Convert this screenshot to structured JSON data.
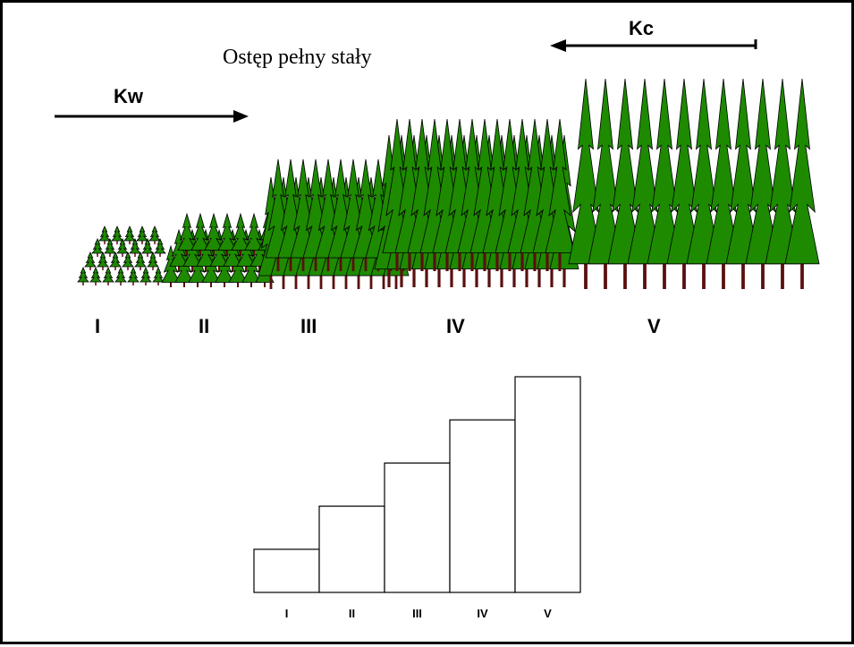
{
  "diagram": {
    "title": "Ostęp pełny stały",
    "arrows": {
      "kw_label": "Kw",
      "kc_label": "Kc"
    },
    "age_classes": [
      "I",
      "II",
      "III",
      "IV",
      "V"
    ],
    "chart_data": {
      "type": "bar",
      "categories": [
        "I",
        "II",
        "III",
        "IV",
        "V"
      ],
      "values": [
        1,
        2,
        3,
        4,
        5
      ],
      "title": "",
      "xlabel": "",
      "ylabel": "",
      "grid": false,
      "bar_fill": "#ffffff",
      "bar_stroke": "#000000"
    },
    "colors": {
      "tree_foliage": "#1e8a00",
      "tree_trunk": "#5a0f0f",
      "outline": "#000000"
    }
  }
}
